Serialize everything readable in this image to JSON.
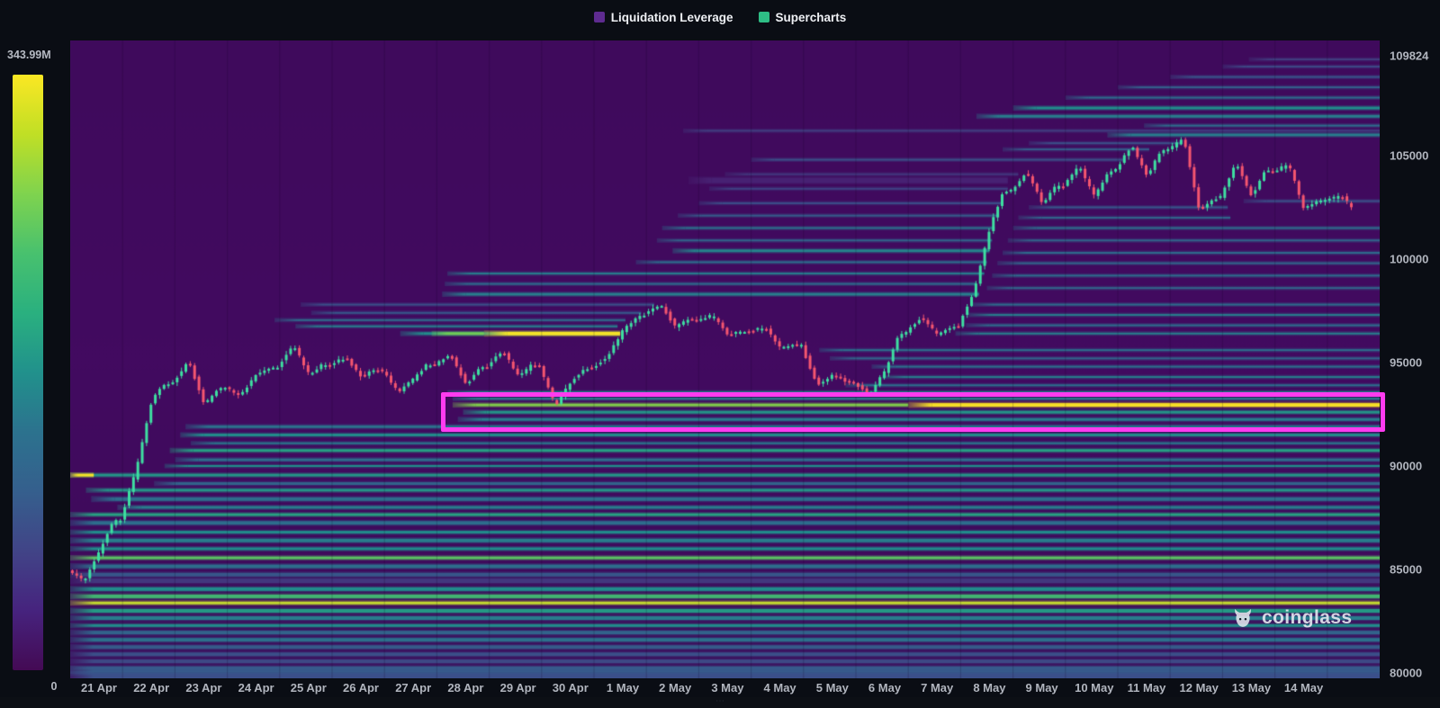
{
  "legend": {
    "items": [
      {
        "label": "Liquidation Leverage",
        "color": "#5e2b90"
      },
      {
        "label": "Supercharts",
        "color": "#2ebd85"
      }
    ]
  },
  "colorbar": {
    "max_label": "343.99M",
    "min_label": "0",
    "stops": [
      "#fbe723",
      "#c0df25",
      "#7fd34e",
      "#48c16e",
      "#2ab07f",
      "#21918c",
      "#2c728e",
      "#355f8d",
      "#414487",
      "#46237e",
      "#440a54"
    ]
  },
  "watermark": {
    "text": "coinglass"
  },
  "bottom_strip": {
    "hint": "⋯"
  },
  "chart_data": {
    "type": "heatmap",
    "subtype": "liquidation-heatmap-with-candlestick-overlay",
    "title": "",
    "legend_position": "top-center",
    "grid": false,
    "background_color": "#420a60",
    "candle_colors": {
      "up": "#3edfa1",
      "down": "#f5566f"
    },
    "highlight_color": "#ff3bf0",
    "colorbar_max": "343.99M",
    "colorbar_min": "0",
    "x_dates": [
      "21 Apr",
      "22 Apr",
      "23 Apr",
      "24 Apr",
      "25 Apr",
      "26 Apr",
      "27 Apr",
      "28 Apr",
      "29 Apr",
      "30 Apr",
      "1 May",
      "2 May",
      "3 May",
      "4 May",
      "5 May",
      "6 May",
      "7 May",
      "8 May",
      "9 May",
      "10 May",
      "11 May",
      "12 May",
      "13 May",
      "14 May"
    ],
    "y_ticks": [
      109824,
      105000,
      100000,
      95000,
      90000,
      85000,
      80000
    ],
    "ylim": [
      79740,
      110560
    ],
    "days_span": 25,
    "daily_ohlc_path": [
      {
        "date": "21 Apr",
        "path": [
          84900,
          84450,
          85900,
          87300
        ]
      },
      {
        "date": "22 Apr",
        "path": [
          87400,
          89800,
          93200,
          94000
        ]
      },
      {
        "date": "23 Apr",
        "path": [
          94000,
          95100,
          92950,
          93700
        ]
      },
      {
        "date": "24 Apr",
        "path": [
          93800,
          93400,
          94500,
          94700
        ]
      },
      {
        "date": "25 Apr",
        "path": [
          94800,
          95850,
          94400,
          94900
        ]
      },
      {
        "date": "26 Apr",
        "path": [
          94900,
          95250,
          94300,
          94650
        ]
      },
      {
        "date": "27 Apr",
        "path": [
          94600,
          93600,
          94200,
          94900
        ]
      },
      {
        "date": "28 Apr",
        "path": [
          94900,
          95400,
          93900,
          94700
        ]
      },
      {
        "date": "29 Apr",
        "path": [
          94800,
          95600,
          94300,
          94900
        ]
      },
      {
        "date": "30 Apr",
        "path": [
          94800,
          92900,
          94100,
          94700
        ]
      },
      {
        "date": "1 May",
        "path": [
          94700,
          95300,
          96600,
          97200
        ]
      },
      {
        "date": "2 May",
        "path": [
          97300,
          97850,
          96700,
          97100
        ]
      },
      {
        "date": "3 May",
        "path": [
          97000,
          97300,
          96300,
          96500
        ]
      },
      {
        "date": "4 May",
        "path": [
          96500,
          96700,
          95700,
          95900
        ]
      },
      {
        "date": "5 May",
        "path": [
          95800,
          93900,
          94400,
          94100
        ]
      },
      {
        "date": "6 May",
        "path": [
          94000,
          93500,
          94600,
          96300
        ]
      },
      {
        "date": "7 May",
        "path": [
          96500,
          97200,
          96300,
          96700
        ]
      },
      {
        "date": "8 May",
        "path": [
          96800,
          98500,
          101500,
          103300
        ]
      },
      {
        "date": "9 May",
        "path": [
          103300,
          104200,
          102700,
          103500
        ]
      },
      {
        "date": "10 May",
        "path": [
          103500,
          104500,
          103000,
          104200
        ]
      },
      {
        "date": "11 May",
        "path": [
          104300,
          105500,
          104000,
          105200
        ]
      },
      {
        "date": "12 May",
        "path": [
          105300,
          105800,
          102300,
          102900
        ]
      },
      {
        "date": "13 May",
        "path": [
          103000,
          104700,
          103000,
          104300
        ]
      },
      {
        "date": "14 May",
        "path": [
          104200,
          104600,
          102400,
          102800
        ]
      },
      {
        "date": "15 May",
        "path": [
          102800,
          103100,
          102200,
          102600
        ]
      }
    ],
    "bands_format": [
      "price",
      "day_start",
      "day_end",
      "intensity_0to1",
      "thickness_px"
    ],
    "heatmap_bands": [
      [
        96400,
        6.3,
        10.5,
        0.55,
        3
      ],
      [
        96400,
        6.9,
        7.9,
        0.78,
        3
      ],
      [
        96400,
        7.9,
        10.5,
        1.0,
        4
      ],
      [
        96750,
        4.3,
        10.45,
        0.5,
        2
      ],
      [
        97050,
        3.9,
        10.6,
        0.42,
        2
      ],
      [
        97400,
        4.6,
        10.9,
        0.34,
        2
      ],
      [
        97800,
        4.4,
        11.15,
        0.3,
        2
      ],
      [
        98300,
        7.1,
        17.35,
        0.5,
        3
      ],
      [
        98800,
        7.15,
        17.3,
        0.44,
        2
      ],
      [
        99300,
        7.2,
        17.45,
        0.5,
        2
      ],
      [
        99850,
        10.8,
        17.5,
        0.45,
        2
      ],
      [
        100400,
        11.5,
        17.55,
        0.52,
        3
      ],
      [
        100900,
        11.2,
        17.6,
        0.4,
        2
      ],
      [
        101500,
        11.3,
        17.65,
        0.46,
        2
      ],
      [
        102100,
        11.6,
        17.7,
        0.36,
        2
      ],
      [
        102700,
        12.0,
        17.8,
        0.3,
        2
      ],
      [
        103400,
        12.2,
        17.9,
        0.26,
        2
      ],
      [
        103800,
        11.8,
        17.9,
        0.15,
        6
      ],
      [
        104100,
        12.5,
        18.1,
        0.22,
        2
      ],
      [
        104800,
        13.0,
        20.1,
        0.3,
        2
      ],
      [
        105300,
        17.8,
        20.6,
        0.36,
        2
      ],
      [
        105600,
        18.3,
        21.2,
        0.3,
        2
      ],
      [
        106000,
        19.8,
        25,
        0.5,
        3
      ],
      [
        106200,
        11.7,
        25,
        0.24,
        2
      ],
      [
        106450,
        20.5,
        25,
        0.44,
        2
      ],
      [
        106900,
        17.3,
        25,
        0.5,
        3
      ],
      [
        107300,
        18.0,
        25,
        0.55,
        3
      ],
      [
        107800,
        19.0,
        25,
        0.44,
        2
      ],
      [
        108300,
        20.0,
        25,
        0.38,
        2
      ],
      [
        108800,
        21.0,
        25,
        0.33,
        2
      ],
      [
        109300,
        22.0,
        25,
        0.28,
        2
      ],
      [
        109650,
        22.5,
        25,
        0.24,
        2
      ],
      [
        93250,
        7.3,
        25,
        0.5,
        2
      ],
      [
        92950,
        7.3,
        16.0,
        0.8,
        3
      ],
      [
        92950,
        16.0,
        25,
        1.0,
        4
      ],
      [
        92600,
        7.5,
        25,
        0.58,
        3
      ],
      [
        92250,
        7.4,
        25,
        0.5,
        3
      ],
      [
        91900,
        2.2,
        25,
        0.46,
        3
      ],
      [
        91500,
        2.1,
        25,
        0.55,
        3
      ],
      [
        91100,
        2.3,
        25,
        0.48,
        2
      ],
      [
        90750,
        1.9,
        25,
        0.62,
        3
      ],
      [
        90300,
        2.0,
        25,
        0.45,
        3
      ],
      [
        90000,
        1.8,
        25,
        0.55,
        2
      ],
      [
        89560,
        0,
        25,
        0.58,
        3
      ],
      [
        89560,
        0,
        0.45,
        1.0,
        3
      ],
      [
        89150,
        1.6,
        25,
        0.4,
        3
      ],
      [
        88830,
        0.3,
        25,
        0.58,
        3
      ],
      [
        88400,
        0.4,
        25,
        0.45,
        4
      ],
      [
        88000,
        0.9,
        25,
        0.5,
        3
      ],
      [
        87650,
        0,
        25,
        0.63,
        3
      ],
      [
        87250,
        0,
        25,
        0.45,
        4
      ],
      [
        86800,
        0,
        25,
        0.55,
        3
      ],
      [
        86400,
        0,
        25,
        0.5,
        4
      ],
      [
        86000,
        0,
        25,
        0.55,
        3
      ],
      [
        85560,
        0,
        25,
        0.75,
        3
      ],
      [
        85150,
        0,
        25,
        0.45,
        4
      ],
      [
        84750,
        0,
        25,
        0.34,
        4
      ],
      [
        84450,
        0,
        25,
        0.22,
        5
      ],
      [
        84050,
        0,
        25,
        0.55,
        4
      ],
      [
        83700,
        0,
        25,
        0.7,
        4
      ],
      [
        83380,
        0,
        25,
        0.9,
        3
      ],
      [
        83000,
        0,
        25,
        0.6,
        4
      ],
      [
        82650,
        0,
        25,
        0.5,
        4
      ],
      [
        82290,
        0,
        25,
        0.55,
        3
      ],
      [
        81950,
        0,
        25,
        0.4,
        4
      ],
      [
        81600,
        0,
        25,
        0.46,
        4
      ],
      [
        81250,
        0,
        25,
        0.36,
        4
      ],
      [
        80900,
        0,
        25,
        0.3,
        4
      ],
      [
        80560,
        0,
        25,
        0.28,
        4
      ],
      [
        80250,
        0,
        25,
        0.33,
        3
      ],
      [
        80000,
        0,
        25,
        0.26,
        4
      ],
      [
        79800,
        0,
        25,
        0.3,
        10
      ],
      [
        80150,
        0,
        25,
        0.35,
        6
      ],
      [
        95600,
        14.3,
        25,
        0.45,
        2
      ],
      [
        95200,
        14.5,
        25,
        0.4,
        2
      ],
      [
        94800,
        15.3,
        25,
        0.46,
        2
      ],
      [
        94300,
        15.5,
        25,
        0.5,
        2
      ],
      [
        93900,
        14.8,
        25,
        0.45,
        2
      ],
      [
        93560,
        7.2,
        25,
        0.5,
        2
      ],
      [
        96400,
        16.9,
        25,
        0.5,
        2
      ],
      [
        96800,
        17.1,
        25,
        0.44,
        2
      ],
      [
        97300,
        17.15,
        25,
        0.5,
        2
      ],
      [
        97800,
        17.2,
        25,
        0.44,
        2
      ],
      [
        98600,
        17.5,
        25,
        0.4,
        2
      ],
      [
        99200,
        17.6,
        25,
        0.44,
        2
      ],
      [
        99800,
        17.7,
        25,
        0.4,
        2
      ],
      [
        100300,
        17.8,
        25,
        0.44,
        2
      ],
      [
        100900,
        17.9,
        25,
        0.4,
        2
      ],
      [
        101500,
        18.0,
        25,
        0.44,
        2
      ],
      [
        102000,
        18.1,
        22.15,
        0.4,
        2
      ],
      [
        102500,
        18.3,
        22.1,
        0.34,
        2
      ],
      [
        102800,
        22.4,
        25,
        0.3,
        2
      ]
    ],
    "highlight_box": {
      "from_day": 7.08,
      "to_day": 25.1,
      "price_top": 93560,
      "price_bottom": 91640,
      "color": "#ff3bf0"
    }
  }
}
